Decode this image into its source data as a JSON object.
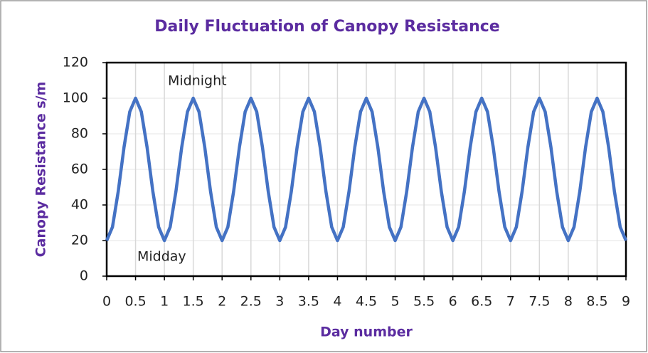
{
  "chart_data": {
    "type": "line",
    "title": "Daily Fluctuation of Canopy Resistance",
    "x_label": "Day number",
    "y_label": "Canopy Resistance s/m",
    "annotations": [
      "Midnight",
      "Midday"
    ],
    "color": "#4472c4",
    "grid": true,
    "x": [
      0,
      0.1,
      0.2,
      0.3,
      0.4,
      0.5,
      0.6,
      0.7,
      0.8,
      0.9,
      1,
      1.1,
      1.2,
      1.3,
      1.4,
      1.5,
      1.6,
      1.7,
      1.8,
      1.9,
      2,
      2.1,
      2.2,
      2.3,
      2.4,
      2.5,
      2.6,
      2.7,
      2.8,
      2.9,
      3,
      3.1,
      3.2,
      3.3,
      3.4,
      3.5,
      3.6,
      3.7,
      3.8,
      3.9,
      4,
      4.1,
      4.2,
      4.3,
      4.4,
      4.5,
      4.6,
      4.7,
      4.8,
      4.9,
      5,
      5.1,
      5.2,
      5.3,
      5.4,
      5.5,
      5.6,
      5.7,
      5.8,
      5.9,
      6,
      6.1,
      6.2,
      6.3,
      6.4,
      6.5,
      6.6,
      6.7,
      6.8,
      6.9,
      7,
      7.1,
      7.2,
      7.3,
      7.4,
      7.5,
      7.6,
      7.7,
      7.8,
      7.9,
      8,
      8.1,
      8.2,
      8.3,
      8.4,
      8.5,
      8.6,
      8.7,
      8.8,
      8.9,
      9
    ],
    "values": [
      20,
      27.6,
      47.6,
      72.4,
      92.4,
      100,
      92.4,
      72.4,
      47.6,
      27.6,
      20,
      27.6,
      47.6,
      72.4,
      92.4,
      100,
      92.4,
      72.4,
      47.6,
      27.6,
      20,
      27.6,
      47.6,
      72.4,
      92.4,
      100,
      92.4,
      72.4,
      47.6,
      27.6,
      20,
      27.6,
      47.6,
      72.4,
      92.4,
      100,
      92.4,
      72.4,
      47.6,
      27.6,
      20,
      27.6,
      47.6,
      72.4,
      92.4,
      100,
      92.4,
      72.4,
      47.6,
      27.6,
      20,
      27.6,
      47.6,
      72.4,
      92.4,
      100,
      92.4,
      72.4,
      47.6,
      27.6,
      20,
      27.6,
      47.6,
      72.4,
      92.4,
      100,
      92.4,
      72.4,
      47.6,
      27.6,
      20,
      27.6,
      47.6,
      72.4,
      92.4,
      100,
      92.4,
      72.4,
      47.6,
      27.6,
      20,
      27.6,
      47.6,
      72.4,
      92.4,
      100,
      92.4,
      72.4,
      47.6,
      27.6,
      20
    ],
    "xlim": [
      0,
      9
    ],
    "xticks": [
      0,
      0.5,
      1,
      1.5,
      2,
      2.5,
      3,
      3.5,
      4,
      4.5,
      5,
      5.5,
      6,
      6.5,
      7,
      7.5,
      8,
      8.5,
      9
    ],
    "ylim": [
      0,
      120
    ],
    "yticks": [
      0,
      20,
      40,
      60,
      80,
      100,
      120
    ]
  }
}
